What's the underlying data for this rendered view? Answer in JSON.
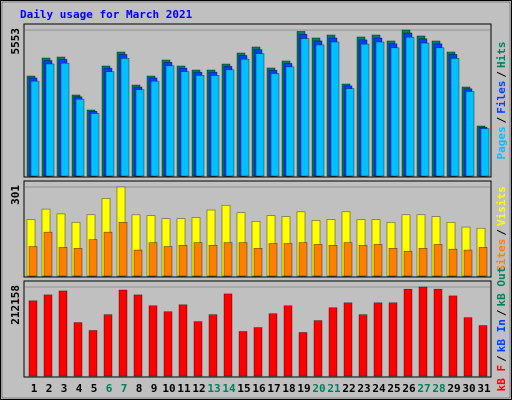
{
  "chart_data": [
    {
      "type": "bar",
      "title": "Daily usage for March 2021",
      "title_color": "#0000ff",
      "ylim": [
        0,
        5553
      ],
      "yticks": [
        5553
      ],
      "series": [
        {
          "name": "Hits",
          "color": "#00805c",
          "values": [
            3815,
            4495,
            4533,
            3098,
            2531,
            4193,
            4722,
            3475,
            3815,
            4420,
            4193,
            4042,
            4042,
            4268,
            4684,
            4911,
            4118,
            4382,
            5500,
            5251,
            5364,
            3513,
            5289,
            5364,
            5138,
            5553,
            5327,
            5138,
            4722,
            3400,
            1927
          ]
        },
        {
          "name": "Files",
          "color": "#0040ff",
          "values": [
            3740,
            4400,
            4440,
            3030,
            2480,
            4110,
            4630,
            3400,
            3740,
            4330,
            4110,
            3960,
            3960,
            4180,
            4590,
            4810,
            4030,
            4290,
            5390,
            5140,
            5250,
            3440,
            5180,
            5250,
            5030,
            5440,
            5220,
            5030,
            4630,
            3330,
            1880
          ]
        },
        {
          "name": "Pages",
          "color": "#00c0ff",
          "values": [
            3620,
            4270,
            4300,
            2940,
            2400,
            3980,
            4480,
            3300,
            3620,
            4200,
            3980,
            3840,
            3840,
            4050,
            4450,
            4660,
            3910,
            4160,
            5230,
            4990,
            5100,
            3340,
            5020,
            5100,
            4880,
            5280,
            5060,
            4880,
            4480,
            3230,
            1830
          ]
        }
      ],
      "separator": "/"
    },
    {
      "type": "bar",
      "ylim": [
        0,
        301
      ],
      "yticks": [
        301
      ],
      "series": [
        {
          "name": "Visits",
          "color": "#ffff00",
          "values": [
            192,
            227,
            211,
            183,
            208,
            263,
            301,
            208,
            205,
            195,
            195,
            199,
            224,
            240,
            215,
            186,
            205,
            202,
            218,
            189,
            192,
            218,
            192,
            192,
            183,
            208,
            208,
            202,
            183,
            167,
            163
          ]
        },
        {
          "name": "Sites",
          "color": "#ff8000",
          "values": [
            102,
            150,
            99,
            96,
            125,
            150,
            183,
            90,
            115,
            102,
            106,
            115,
            106,
            115,
            115,
            96,
            112,
            112,
            115,
            109,
            106,
            115,
            106,
            109,
            96,
            86,
            96,
            109,
            93,
            90,
            99
          ]
        }
      ]
    },
    {
      "type": "bar",
      "ylim": [
        0,
        212158
      ],
      "yticks": [
        212158
      ],
      "series": [
        {
          "name": "kB F",
          "color": "#ff0000",
          "values": [
            179517,
            193506,
            202832,
            128227,
            109576,
            146878,
            205000,
            193506,
            167861,
            153873,
            170193,
            130559,
            146878,
            195838,
            107244,
            116570,
            149210,
            167861,
            104913,
            132891,
            163198,
            174856,
            146878,
            174856,
            174856,
            207000,
            212158,
            207000,
            191174,
            139884,
            121233
          ]
        }
      ],
      "extra_legend": [
        {
          "name": "kB In",
          "color": "#0040ff"
        },
        {
          "name": "kB Out",
          "color": "#00805c"
        }
      ],
      "categories": [
        "1",
        "2",
        "3",
        "4",
        "5",
        "6",
        "7",
        "8",
        "9",
        "10",
        "11",
        "12",
        "13",
        "14",
        "15",
        "16",
        "17",
        "18",
        "19",
        "20",
        "21",
        "22",
        "23",
        "24",
        "25",
        "26",
        "27",
        "28",
        "29",
        "30",
        "31"
      ],
      "weekend": [
        6,
        7,
        13,
        14,
        20,
        21,
        27,
        28
      ],
      "weekend_color": "#00805c"
    }
  ]
}
